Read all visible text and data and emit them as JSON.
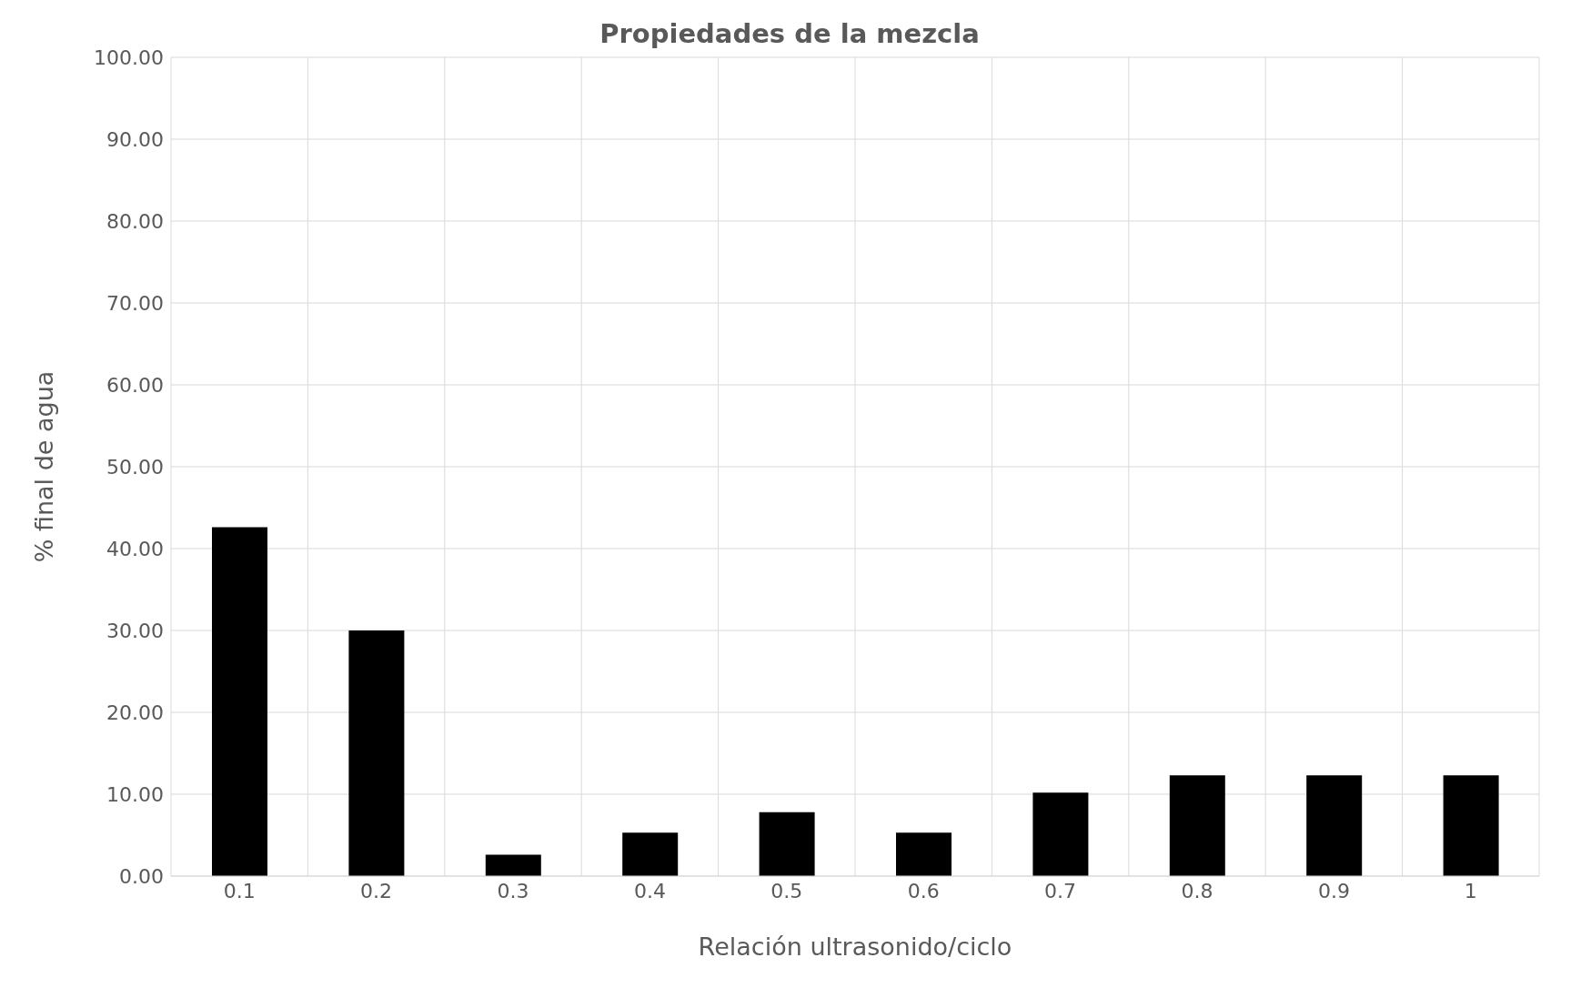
{
  "chart_data": {
    "type": "bar",
    "title": "Propiedades de la mezcla",
    "xlabel": "Relación ultrasonido/ciclo",
    "ylabel": "% final de agua",
    "categories": [
      "0.1",
      "0.2",
      "0.3",
      "0.4",
      "0.5",
      "0.6",
      "0.7",
      "0.8",
      "0.9",
      "1"
    ],
    "values": [
      42.6,
      30.0,
      2.6,
      5.3,
      7.8,
      5.3,
      10.2,
      12.3,
      12.3,
      12.3
    ],
    "color": "#000000",
    "ylim": [
      0,
      100
    ],
    "yticks": [
      {
        "value": 0,
        "label": "0.00"
      },
      {
        "value": 10,
        "label": "10.00"
      },
      {
        "value": 20,
        "label": "20.00"
      },
      {
        "value": 30,
        "label": "30.00"
      },
      {
        "value": 40,
        "label": "40.00"
      },
      {
        "value": 50,
        "label": "50.00"
      },
      {
        "value": 60,
        "label": "60.00"
      },
      {
        "value": 70,
        "label": "70.00"
      },
      {
        "value": 80,
        "label": "80.00"
      },
      {
        "value": 90,
        "label": "90.00"
      },
      {
        "value": 100,
        "label": "100.00"
      }
    ],
    "grid": true
  }
}
